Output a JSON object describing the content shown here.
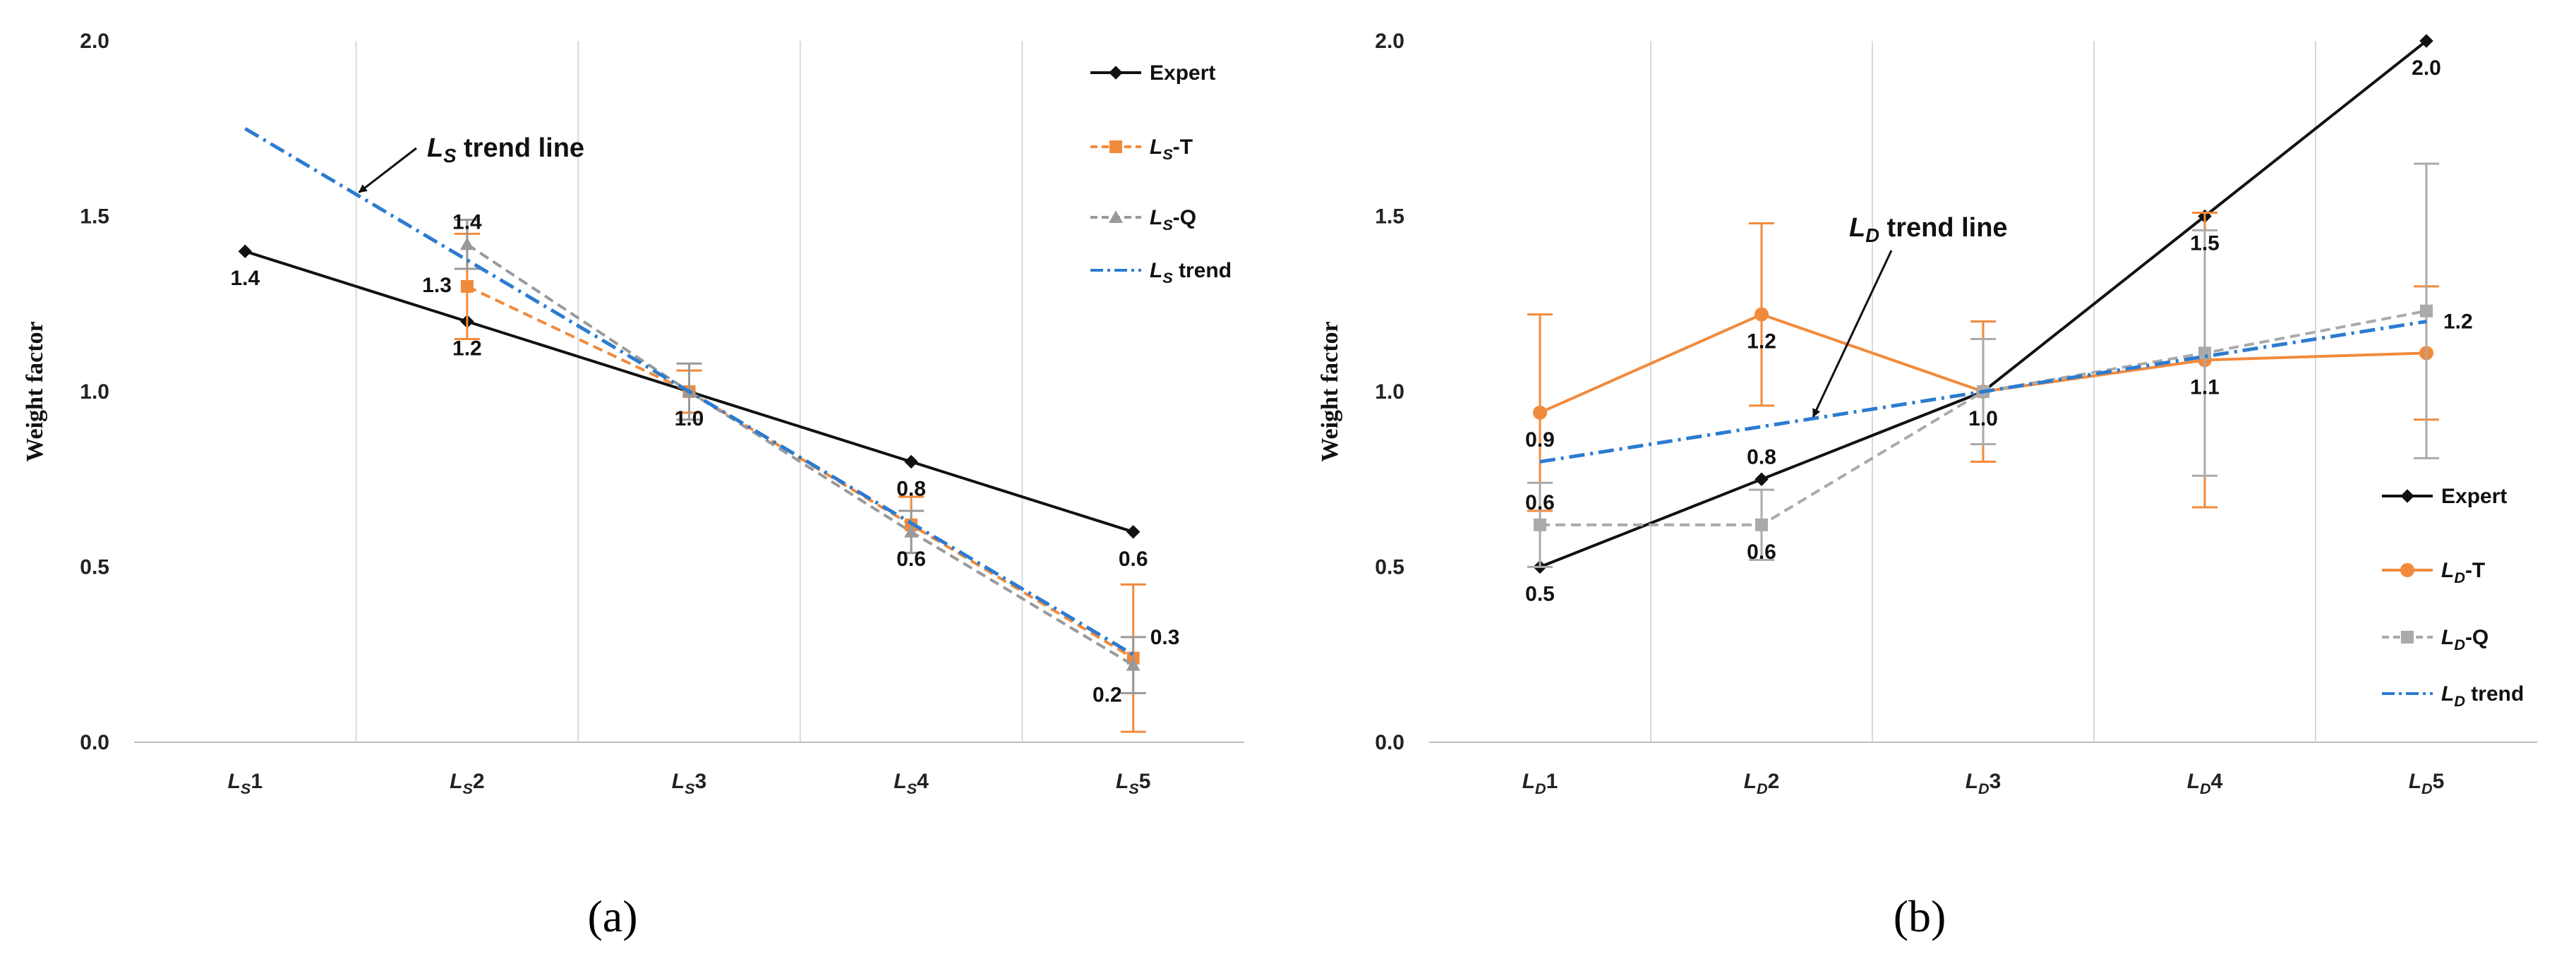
{
  "figure": {
    "panels": [
      {
        "label": "(a)",
        "id": "a"
      },
      {
        "label": "(b)",
        "id": "b"
      }
    ]
  },
  "colors": {
    "expert": "#111111",
    "t": "#f28a3b",
    "q": "#999999",
    "trend": "#2b7bd1",
    "grid": "#d9d9d9",
    "error_a_q": "#777777"
  },
  "chart_data": [
    {
      "type": "line",
      "panel": "a",
      "title": "",
      "xlabel": "",
      "ylabel": "Weight factor",
      "ylim": [
        0,
        2
      ],
      "yticks": [
        "0.0",
        "0.5",
        "1.0",
        "1.5",
        "2.0"
      ],
      "categories": [
        {
          "sym": "L",
          "sub": "S",
          "num": "1"
        },
        {
          "sym": "L",
          "sub": "S",
          "num": "2"
        },
        {
          "sym": "L",
          "sub": "S",
          "num": "3"
        },
        {
          "sym": "L",
          "sub": "S",
          "num": "4"
        },
        {
          "sym": "L",
          "sub": "S",
          "num": "5"
        }
      ],
      "series": [
        {
          "key": "expert",
          "name": "Expert",
          "legend": {
            "sym": "",
            "sub": "",
            "tail": "Expert"
          },
          "values": [
            1.4,
            1.2,
            1.0,
            0.8,
            0.6
          ],
          "style": "solid",
          "marker": "diamond",
          "color": "#111111"
        },
        {
          "key": "t",
          "name": "LS-T",
          "legend": {
            "sym": "L",
            "sub": "S",
            "tail": "-T"
          },
          "values": [
            null,
            1.3,
            1.0,
            0.62,
            0.24
          ],
          "errors": [
            null,
            0.15,
            0.06,
            0.08,
            0.21
          ],
          "style": "dash",
          "marker": "square",
          "color": "#f28a3b"
        },
        {
          "key": "q",
          "name": "LS-Q",
          "legend": {
            "sym": "L",
            "sub": "S",
            "tail": "-Q"
          },
          "values": [
            null,
            1.42,
            1.0,
            0.6,
            0.22
          ],
          "errors": [
            null,
            0.07,
            0.08,
            0.06,
            0.08
          ],
          "style": "dash",
          "marker": "triangle",
          "color": "#999999"
        },
        {
          "key": "trend",
          "name": "LS trend",
          "legend": {
            "sym": "L",
            "sub": "S",
            "tail": " trend"
          },
          "points": [
            [
              1,
              1.75
            ],
            [
              5,
              0.25
            ]
          ],
          "style": "dashdot",
          "marker": "none",
          "color": "#2b7bd1"
        }
      ],
      "data_labels": [
        {
          "text": "1.4",
          "x": 1,
          "y": 1.4,
          "pos": "below"
        },
        {
          "text": "1.2",
          "x": 2,
          "y": 1.2,
          "pos": "below"
        },
        {
          "text": "1.3",
          "x": 2,
          "y": 1.3,
          "pos": "left"
        },
        {
          "text": "1.4",
          "x": 2,
          "y": 1.42,
          "pos": "above"
        },
        {
          "text": "1.0",
          "x": 3,
          "y": 1.0,
          "pos": "below"
        },
        {
          "text": "0.8",
          "x": 4,
          "y": 0.8,
          "pos": "below"
        },
        {
          "text": "0.6",
          "x": 4,
          "y": 0.6,
          "pos": "below"
        },
        {
          "text": "0.6",
          "x": 5,
          "y": 0.6,
          "pos": "below"
        },
        {
          "text": "0.2",
          "x": 5,
          "y": 0.22,
          "pos": "below-left"
        },
        {
          "text": "0.3",
          "x": 5,
          "y": 0.3,
          "pos": "right"
        }
      ],
      "annotation": {
        "sym": "L",
        "sub": "S",
        "tail": " trend line",
        "arrow_to": [
          1.5,
          1.56
        ]
      },
      "legend_position": "top-right"
    },
    {
      "type": "line",
      "panel": "b",
      "title": "",
      "xlabel": "",
      "ylabel": "Weight factor",
      "ylim": [
        0,
        2
      ],
      "yticks": [
        "0.0",
        "0.5",
        "1.0",
        "1.5",
        "2.0"
      ],
      "categories": [
        {
          "sym": "L",
          "sub": "D",
          "num": "1"
        },
        {
          "sym": "L",
          "sub": "D",
          "num": "2"
        },
        {
          "sym": "L",
          "sub": "D",
          "num": "3"
        },
        {
          "sym": "L",
          "sub": "D",
          "num": "4"
        },
        {
          "sym": "L",
          "sub": "D",
          "num": "5"
        }
      ],
      "series": [
        {
          "key": "expert",
          "name": "Expert",
          "legend": {
            "sym": "",
            "sub": "",
            "tail": "Expert"
          },
          "values": [
            0.5,
            0.75,
            1.0,
            1.5,
            2.0
          ],
          "style": "solid",
          "marker": "diamond",
          "color": "#111111"
        },
        {
          "key": "t",
          "name": "LD-T",
          "legend": {
            "sym": "L",
            "sub": "D",
            "tail": "-T"
          },
          "values": [
            0.94,
            1.22,
            1.0,
            1.09,
            1.11
          ],
          "errors": [
            0.28,
            0.26,
            0.2,
            0.42,
            0.19
          ],
          "style": "solid",
          "marker": "circle",
          "color": "#f28a3b"
        },
        {
          "key": "q",
          "name": "LD-Q",
          "legend": {
            "sym": "L",
            "sub": "D",
            "tail": "-Q"
          },
          "values": [
            0.62,
            0.62,
            1.0,
            1.11,
            1.23
          ],
          "errors": [
            0.12,
            0.1,
            0.15,
            0.35,
            0.42
          ],
          "style": "dash",
          "marker": "square",
          "color": "#aaaaaa"
        },
        {
          "key": "trend",
          "name": "LD trend",
          "legend": {
            "sym": "L",
            "sub": "D",
            "tail": " trend"
          },
          "points": [
            [
              1,
              0.8
            ],
            [
              5,
              1.2
            ]
          ],
          "style": "dashdot",
          "marker": "none",
          "color": "#2b7bd1"
        }
      ],
      "data_labels": [
        {
          "text": "0.9",
          "x": 1,
          "y": 0.94,
          "pos": "below"
        },
        {
          "text": "0.6",
          "x": 1,
          "y": 0.62,
          "pos": "above"
        },
        {
          "text": "0.5",
          "x": 1,
          "y": 0.5,
          "pos": "below"
        },
        {
          "text": "1.2",
          "x": 2,
          "y": 1.22,
          "pos": "below"
        },
        {
          "text": "0.8",
          "x": 2,
          "y": 0.75,
          "pos": "above"
        },
        {
          "text": "0.6",
          "x": 2,
          "y": 0.62,
          "pos": "below"
        },
        {
          "text": "1.0",
          "x": 3,
          "y": 1.0,
          "pos": "below"
        },
        {
          "text": "1.5",
          "x": 4,
          "y": 1.5,
          "pos": "below"
        },
        {
          "text": "1.1",
          "x": 4,
          "y": 1.09,
          "pos": "below"
        },
        {
          "text": "2.0",
          "x": 5,
          "y": 2.0,
          "pos": "below"
        },
        {
          "text": "1.2",
          "x": 5,
          "y": 1.2,
          "pos": "right"
        }
      ],
      "annotation": {
        "sym": "L",
        "sub": "D",
        "tail": " trend line",
        "arrow_to": [
          2.22,
          0.92
        ]
      },
      "legend_position": "bottom-right"
    }
  ]
}
